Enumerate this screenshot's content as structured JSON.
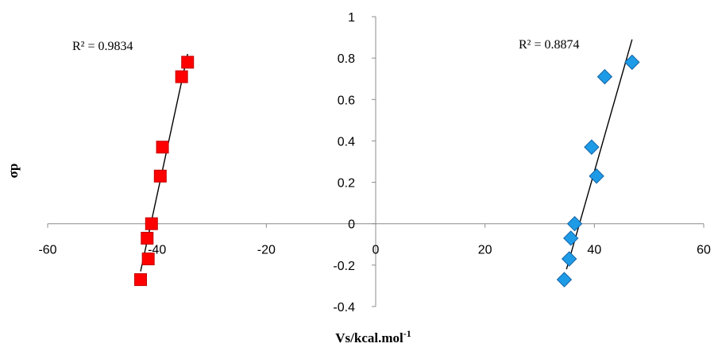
{
  "chart_data": {
    "type": "scatter",
    "xlabel": "Vs/kcal.mol",
    "xlabel_superscript": "-1",
    "ylabel": "σp",
    "xlim": [
      -60,
      60
    ],
    "ylim": [
      -0.4,
      1
    ],
    "xticks": [
      "-60",
      "-40",
      "-20",
      "0",
      "20",
      "40",
      "60"
    ],
    "yticks": [
      "-0.4",
      "-0.2",
      "0",
      "0.2",
      "0.4",
      "0.6",
      "0.8",
      "1"
    ],
    "grid": false,
    "legend": "none",
    "series": [
      {
        "marker": "square",
        "color": "#ff0000",
        "edge_color": "#c00000",
        "points": [
          {
            "x": -34.4,
            "y": 0.78
          },
          {
            "x": -35.5,
            "y": 0.71
          },
          {
            "x": -39.0,
            "y": 0.37
          },
          {
            "x": -39.4,
            "y": 0.23
          },
          {
            "x": -41.0,
            "y": 0.0
          },
          {
            "x": -41.8,
            "y": -0.07
          },
          {
            "x": -41.6,
            "y": -0.17
          },
          {
            "x": -43.0,
            "y": -0.27
          }
        ],
        "trendline": {
          "x": [
            -43.0,
            -34.4
          ],
          "y": [
            -0.23,
            0.82
          ]
        },
        "r2_label": "R² = 0.9834"
      },
      {
        "marker": "diamond",
        "color": "#1e9be6",
        "edge_color": "#1565a8",
        "points": [
          {
            "x": 46.9,
            "y": 0.78
          },
          {
            "x": 41.9,
            "y": 0.71
          },
          {
            "x": 39.5,
            "y": 0.37
          },
          {
            "x": 40.4,
            "y": 0.23
          },
          {
            "x": 36.4,
            "y": 0.0
          },
          {
            "x": 35.7,
            "y": -0.07
          },
          {
            "x": 35.4,
            "y": -0.17
          },
          {
            "x": 34.5,
            "y": -0.27
          }
        ],
        "trendline": {
          "x": [
            34.9,
            46.9
          ],
          "y": [
            -0.22,
            0.89
          ]
        },
        "r2_label": "R² = 0.8874"
      }
    ]
  }
}
